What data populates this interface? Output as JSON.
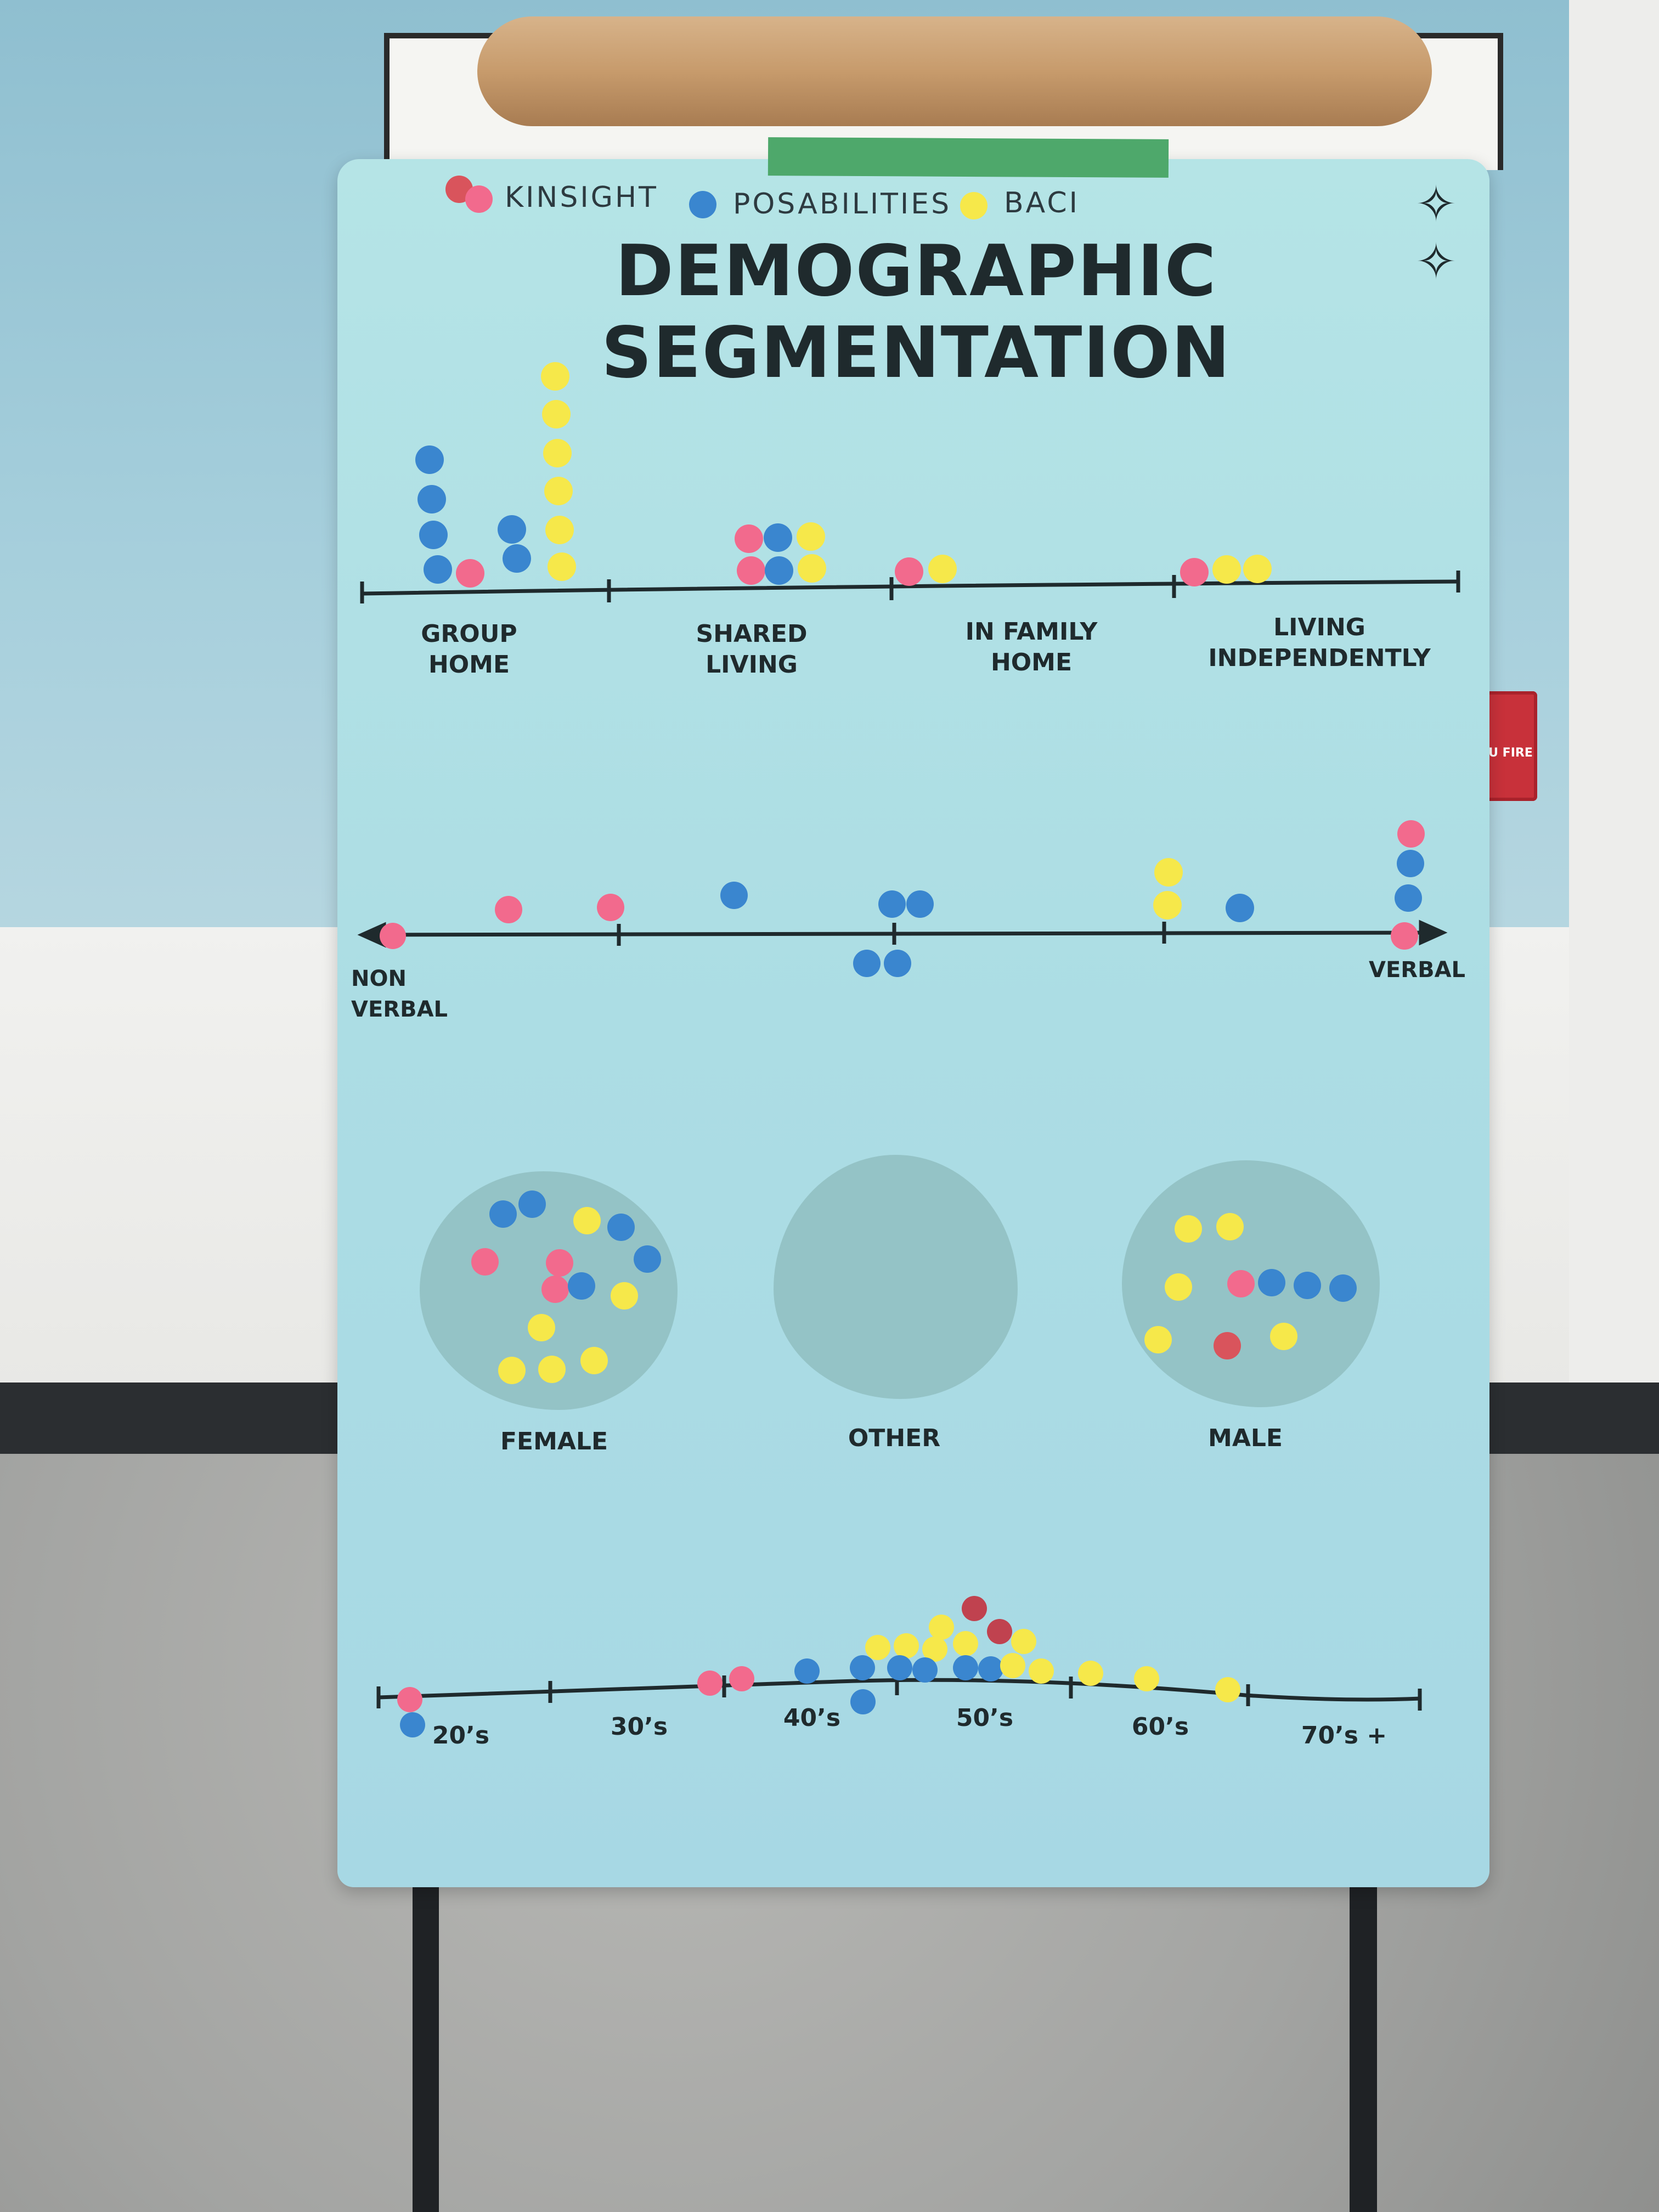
{
  "colors": {
    "kinsight": "#f26a8d",
    "kinsight_red": "#d9545c",
    "posabilities": "#3a86cf",
    "baci": "#f6e84a",
    "line": "#1f2a2d"
  },
  "legend": [
    {
      "label": "KINSIGHT",
      "color": "kinsight"
    },
    {
      "label": "POSABILITIES",
      "color": "posabilities"
    },
    {
      "label": "BACI",
      "color": "baci"
    }
  ],
  "title": "DEMOGRAPHIC SEGMENTATION",
  "living": {
    "categories": [
      "GROUP\nHOME",
      "SHARED\nLIVING",
      "IN FAMILY\nHOME",
      "LIVING\nINDEPENDENTLY"
    ]
  },
  "communication": {
    "left_label": "NON\nVERBAL",
    "right_label": "VERBAL"
  },
  "gender": {
    "categories": [
      "FEMALE",
      "OTHER",
      "MALE"
    ]
  },
  "age": {
    "categories": [
      "20’s",
      "30’s",
      "40’s",
      "50’s",
      "60’s",
      "70’s +"
    ]
  },
  "background": {
    "fire_alarm": "EU FIRE"
  }
}
